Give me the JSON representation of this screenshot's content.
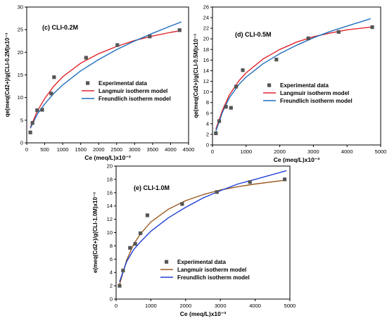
{
  "chart_data": [
    {
      "type": "scatter",
      "panel_label": "(c) CLI-0.2M",
      "xlabel": "Ce (meq/L)x10⁻³",
      "ylabel": "qe(meq(Cd2+)/g(CLI-0.2M)x10⁻³",
      "xlim": [
        0,
        4500
      ],
      "ylim": [
        0,
        30
      ],
      "xticks": [
        0,
        500,
        1000,
        1500,
        2000,
        2500,
        3000,
        3500,
        4000,
        4500
      ],
      "yticks": [
        0,
        5,
        10,
        15,
        20,
        25,
        30
      ],
      "legend_position": "center-right",
      "series": [
        {
          "name": "Experimental data",
          "kind": "points",
          "color": "#555555",
          "x": [
            100,
            160,
            290,
            430,
            680,
            760,
            1650,
            2520,
            3420,
            4250
          ],
          "y": [
            2.3,
            4.4,
            7.2,
            7.3,
            10.9,
            14.5,
            18.8,
            21.6,
            23.5,
            24.9
          ]
        },
        {
          "name": "Langmuir isotherm model",
          "kind": "line",
          "color": "#e0242c",
          "x": [
            100,
            300,
            500,
            750,
            1000,
            1500,
            2000,
            2500,
            3000,
            3500,
            4000,
            4300
          ],
          "y": [
            3.4,
            7.1,
            9.8,
            12.5,
            14.6,
            17.6,
            19.7,
            21.3,
            22.6,
            23.6,
            24.4,
            24.8
          ]
        },
        {
          "name": "Freundlich isotherm model",
          "kind": "line",
          "color": "#1f6fbf",
          "x": [
            100,
            300,
            500,
            750,
            1000,
            1500,
            2000,
            2500,
            3000,
            3500,
            4000,
            4300
          ],
          "y": [
            3.2,
            6.4,
            8.6,
            10.9,
            12.8,
            15.9,
            18.4,
            20.6,
            22.5,
            24.2,
            25.8,
            26.7
          ]
        }
      ]
    },
    {
      "type": "scatter",
      "panel_label": "(d) CLI-0.5M",
      "xlabel": "Ce (meq/L)x10⁻³",
      "ylabel": "qe(meq(Cd2+)/g(CLI-0.5M)x10⁻³",
      "xlim": [
        0,
        5000
      ],
      "ylim": [
        0,
        26
      ],
      "xticks": [
        0,
        1000,
        2000,
        3000,
        4000,
        5000
      ],
      "yticks": [
        0,
        2,
        4,
        6,
        8,
        10,
        12,
        14,
        16,
        18,
        20,
        22,
        24,
        26
      ],
      "legend_position": "center-right",
      "series": [
        {
          "name": "Experimental data",
          "kind": "points",
          "color": "#555555",
          "x": [
            100,
            200,
            400,
            550,
            700,
            900,
            1900,
            2850,
            3750,
            4750
          ],
          "y": [
            2.2,
            4.5,
            7.2,
            7.0,
            11.0,
            14.1,
            16.1,
            20.1,
            21.3,
            22.2
          ]
        },
        {
          "name": "Langmuir isotherm model",
          "kind": "line",
          "color": "#e0242c",
          "x": [
            100,
            300,
            500,
            800,
            1000,
            1500,
            2000,
            2500,
            3000,
            3500,
            4000,
            4700
          ],
          "y": [
            3.0,
            6.6,
            9.4,
            12.2,
            13.6,
            16.2,
            18.0,
            19.4,
            20.4,
            21.1,
            21.7,
            22.2
          ]
        },
        {
          "name": "Freundlich isotherm model",
          "kind": "line",
          "color": "#1f6fbf",
          "x": [
            100,
            300,
            500,
            800,
            1000,
            1500,
            2000,
            2500,
            3000,
            3500,
            4000,
            4700
          ],
          "y": [
            2.6,
            6.2,
            8.9,
            11.5,
            12.8,
            15.3,
            17.2,
            18.8,
            20.2,
            21.4,
            22.4,
            23.8
          ]
        }
      ]
    },
    {
      "type": "scatter",
      "panel_label": "(e) CLI-1.0M",
      "xlabel": "Ce (meq/L)x10⁻³",
      "ylabel": "e(meq(Cd2+)/g(CLI-1.0M)x10⁻³",
      "xlim": [
        0,
        5000
      ],
      "ylim": [
        0,
        20
      ],
      "xticks": [
        0,
        1000,
        2000,
        3000,
        4000,
        5000
      ],
      "yticks": [
        0,
        2,
        4,
        6,
        8,
        10,
        12,
        14,
        16,
        18,
        20
      ],
      "legend_position": "bottom-right",
      "series": [
        {
          "name": "Experimental data",
          "kind": "points",
          "color": "#555555",
          "x": [
            100,
            200,
            400,
            550,
            700,
            900,
            1900,
            2900,
            3850,
            4850
          ],
          "y": [
            2.0,
            4.3,
            7.7,
            8.3,
            9.9,
            12.6,
            14.3,
            16.1,
            17.6,
            18.0
          ]
        },
        {
          "name": "Langmuir isotherm model",
          "kind": "line",
          "color": "#9a5a22",
          "x": [
            100,
            300,
            500,
            700,
            1000,
            1500,
            2000,
            2500,
            3000,
            3500,
            4000,
            4900
          ],
          "y": [
            2.2,
            5.8,
            8.2,
            9.8,
            11.6,
            13.5,
            14.8,
            15.7,
            16.4,
            16.9,
            17.3,
            17.9
          ]
        },
        {
          "name": "Freundlich isotherm model",
          "kind": "line",
          "color": "#1f3fd6",
          "x": [
            100,
            300,
            500,
            700,
            1000,
            1500,
            2000,
            2500,
            3000,
            3500,
            4000,
            4900
          ],
          "y": [
            2.6,
            5.6,
            7.4,
            8.6,
            10.2,
            12.2,
            13.8,
            15.2,
            16.3,
            17.3,
            18.0,
            19.3
          ]
        }
      ]
    }
  ]
}
